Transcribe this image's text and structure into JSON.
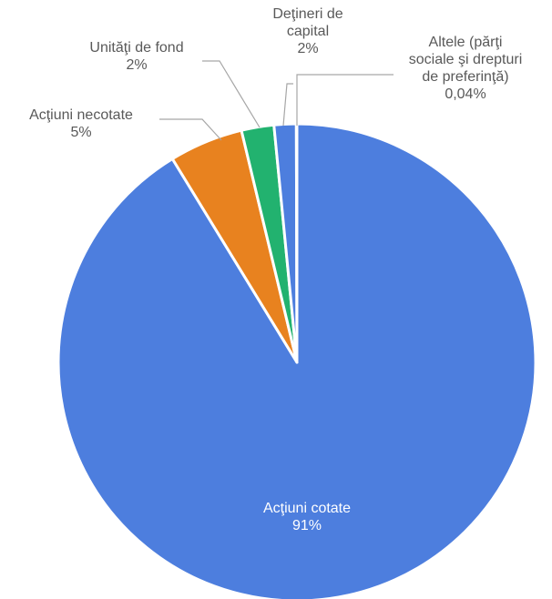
{
  "chart_data": {
    "type": "pie",
    "title": "",
    "start_angle_deg": 0,
    "direction": "clockwise",
    "slices": [
      {
        "label": "Acţiuni cotate",
        "lines": [
          "Acţiuni cotate"
        ],
        "percent_label": "91%",
        "value": 91.3,
        "color": "#4d7ede",
        "label_color": "light"
      },
      {
        "label": "Acţiuni necotate",
        "lines": [
          "Acţiuni necotate"
        ],
        "percent_label": "5%",
        "value": 5.0,
        "color": "#e8821f",
        "label_color": "dark"
      },
      {
        "label": "Unităţi de fond",
        "lines": [
          "Unităţi de fond"
        ],
        "percent_label": "2%",
        "value": 2.2,
        "color": "#22b26f",
        "label_color": "dark"
      },
      {
        "label": "Deţineri de capital",
        "lines": [
          "Deţineri de",
          "capital"
        ],
        "percent_label": "2%",
        "value": 1.5,
        "color": "#4d7ede",
        "label_color": "dark"
      },
      {
        "label": "Altele (părţi sociale şi drepturi de preferinţă)",
        "lines": [
          "Altele (părţi",
          "sociale şi drepturi",
          "de preferinţă)"
        ],
        "percent_label": "0,04%",
        "value": 0.04,
        "color": "#4d7ede",
        "label_color": "dark"
      }
    ]
  }
}
